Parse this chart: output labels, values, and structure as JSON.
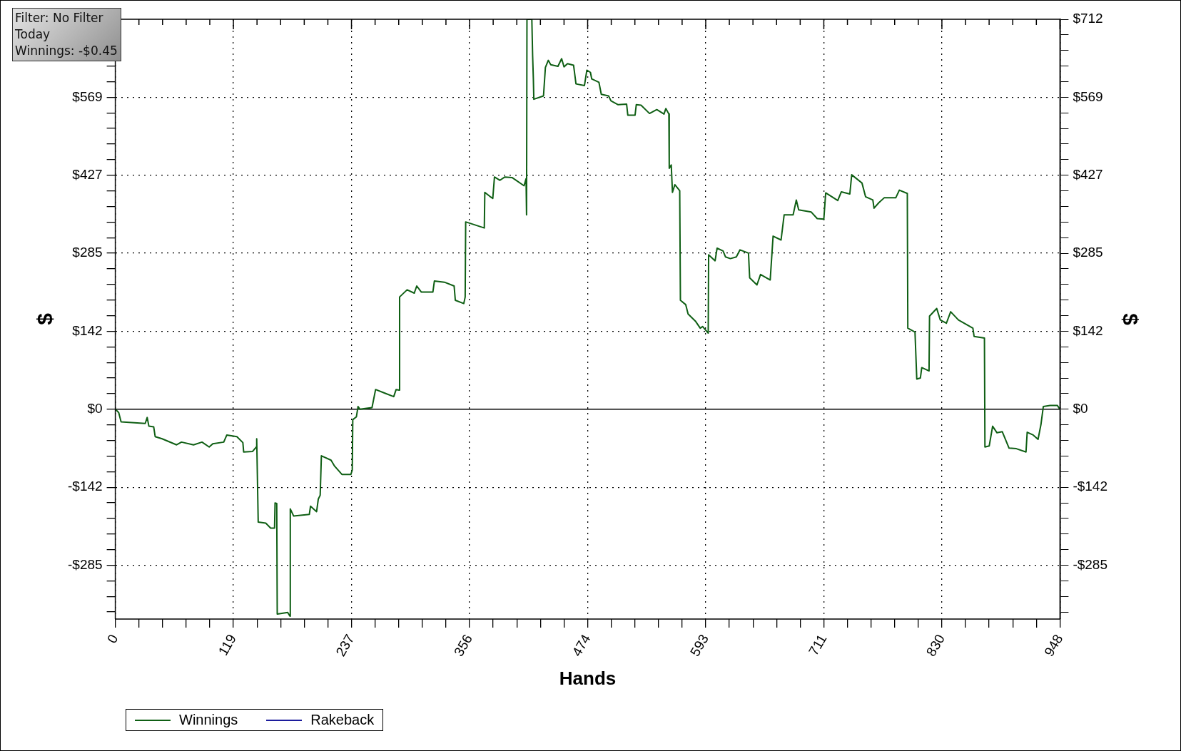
{
  "chart_data": {
    "type": "line",
    "xlabel": "Hands",
    "ylabel": "$",
    "y2label": "$",
    "annotations": [
      "Filter: No Filter",
      "Today",
      "Winnings: -$0.45"
    ],
    "xlim": [
      0,
      948
    ],
    "xticks": [
      {
        "value": 0,
        "label": "0"
      },
      {
        "value": 23.7,
        "label": null
      },
      {
        "value": 47.4,
        "label": null
      },
      {
        "value": 71.1,
        "label": null
      },
      {
        "value": 94.8,
        "label": null
      },
      {
        "value": 118.5,
        "label": "119"
      },
      {
        "value": 142.2,
        "label": null
      },
      {
        "value": 165.9,
        "label": null
      },
      {
        "value": 189.6,
        "label": null
      },
      {
        "value": 213.3,
        "label": null
      },
      {
        "value": 237,
        "label": "237"
      },
      {
        "value": 260.7,
        "label": null
      },
      {
        "value": 284.4,
        "label": null
      },
      {
        "value": 308.1,
        "label": null
      },
      {
        "value": 331.8,
        "label": null
      },
      {
        "value": 355.5,
        "label": "356"
      },
      {
        "value": 379.2,
        "label": null
      },
      {
        "value": 402.9,
        "label": null
      },
      {
        "value": 426.6,
        "label": null
      },
      {
        "value": 450.3,
        "label": null
      },
      {
        "value": 474,
        "label": "474"
      },
      {
        "value": 497.7,
        "label": null
      },
      {
        "value": 521.4,
        "label": null
      },
      {
        "value": 545.1,
        "label": null
      },
      {
        "value": 568.8,
        "label": null
      },
      {
        "value": 592.5,
        "label": "593"
      },
      {
        "value": 616.2,
        "label": null
      },
      {
        "value": 639.9,
        "label": null
      },
      {
        "value": 663.6,
        "label": null
      },
      {
        "value": 687.3,
        "label": null
      },
      {
        "value": 711,
        "label": "711"
      },
      {
        "value": 734.7,
        "label": null
      },
      {
        "value": 758.4,
        "label": null
      },
      {
        "value": 782.1,
        "label": null
      },
      {
        "value": 805.8,
        "label": null
      },
      {
        "value": 829.5,
        "label": "830"
      },
      {
        "value": 853.2,
        "label": null
      },
      {
        "value": 876.9,
        "label": null
      },
      {
        "value": 900.6,
        "label": null
      },
      {
        "value": 924.3,
        "label": null
      },
      {
        "value": 948,
        "label": "948"
      }
    ],
    "ylim": [
      -383,
      712
    ],
    "yticks": [
      {
        "value": -370.24,
        "label": null
      },
      {
        "value": -341.76,
        "label": null
      },
      {
        "value": -313.28,
        "label": null
      },
      {
        "value": -284.8,
        "label": "-$285"
      },
      {
        "value": -256.32,
        "label": null
      },
      {
        "value": -227.84,
        "label": null
      },
      {
        "value": -199.36,
        "label": null
      },
      {
        "value": -170.88,
        "label": null
      },
      {
        "value": -142.4,
        "label": "-$142"
      },
      {
        "value": -113.92,
        "label": null
      },
      {
        "value": -85.44,
        "label": null
      },
      {
        "value": -56.96,
        "label": null
      },
      {
        "value": -28.48,
        "label": null
      },
      {
        "value": 0,
        "label": "$0"
      },
      {
        "value": 28.48,
        "label": null
      },
      {
        "value": 56.96,
        "label": null
      },
      {
        "value": 85.44,
        "label": null
      },
      {
        "value": 113.92,
        "label": null
      },
      {
        "value": 142.4,
        "label": "$142"
      },
      {
        "value": 170.88,
        "label": null
      },
      {
        "value": 199.36,
        "label": null
      },
      {
        "value": 227.84,
        "label": null
      },
      {
        "value": 256.32,
        "label": null
      },
      {
        "value": 284.8,
        "label": "$285"
      },
      {
        "value": 313.28,
        "label": null
      },
      {
        "value": 341.76,
        "label": null
      },
      {
        "value": 370.24,
        "label": null
      },
      {
        "value": 398.72,
        "label": null
      },
      {
        "value": 427.2,
        "label": "$427"
      },
      {
        "value": 455.68,
        "label": null
      },
      {
        "value": 484.16,
        "label": null
      },
      {
        "value": 512.64,
        "label": null
      },
      {
        "value": 541.12,
        "label": null
      },
      {
        "value": 569,
        "label": "$569"
      },
      {
        "value": 598.08,
        "label": null
      },
      {
        "value": 626.56,
        "label": null
      },
      {
        "value": 655.04,
        "label": null
      },
      {
        "value": 683.52,
        "label": null
      },
      {
        "value": 712,
        "label": null
      }
    ],
    "y2lim": [
      -383,
      712
    ],
    "y2ticks": [
      {
        "value": -370.24,
        "label": null
      },
      {
        "value": -341.76,
        "label": null
      },
      {
        "value": -313.28,
        "label": null
      },
      {
        "value": -284.8,
        "label": "-$285"
      },
      {
        "value": -256.32,
        "label": null
      },
      {
        "value": -227.84,
        "label": null
      },
      {
        "value": -199.36,
        "label": null
      },
      {
        "value": -170.88,
        "label": null
      },
      {
        "value": -142.4,
        "label": "-$142"
      },
      {
        "value": -113.92,
        "label": null
      },
      {
        "value": -85.44,
        "label": null
      },
      {
        "value": -56.96,
        "label": null
      },
      {
        "value": -28.48,
        "label": null
      },
      {
        "value": 0,
        "label": "$0"
      },
      {
        "value": 28.48,
        "label": null
      },
      {
        "value": 56.96,
        "label": null
      },
      {
        "value": 85.44,
        "label": null
      },
      {
        "value": 113.92,
        "label": null
      },
      {
        "value": 142.4,
        "label": "$142"
      },
      {
        "value": 170.88,
        "label": null
      },
      {
        "value": 199.36,
        "label": null
      },
      {
        "value": 227.84,
        "label": null
      },
      {
        "value": 256.32,
        "label": null
      },
      {
        "value": 284.8,
        "label": "$285"
      },
      {
        "value": 313.28,
        "label": null
      },
      {
        "value": 341.76,
        "label": null
      },
      {
        "value": 370.24,
        "label": null
      },
      {
        "value": 398.72,
        "label": null
      },
      {
        "value": 427.2,
        "label": "$427"
      },
      {
        "value": 455.68,
        "label": null
      },
      {
        "value": 484.16,
        "label": null
      },
      {
        "value": 512.64,
        "label": null
      },
      {
        "value": 541.12,
        "label": null
      },
      {
        "value": 569,
        "label": "$569"
      },
      {
        "value": 598.08,
        "label": null
      },
      {
        "value": 626.56,
        "label": null
      },
      {
        "value": 655.04,
        "label": null
      },
      {
        "value": 683.52,
        "label": null
      },
      {
        "value": 712,
        "label": "$712"
      }
    ],
    "grid": true,
    "legend": "bottom left",
    "marker": "none",
    "line_style": "solid",
    "ref_lines": [
      {
        "axis": "y",
        "value": 0,
        "color": "#000000"
      }
    ],
    "series": [
      {
        "name": "Winnings",
        "color": "#0f5f14",
        "x": [
          0,
          3.4,
          5.8,
          30,
          32,
          33.7,
          38.5,
          40,
          47,
          61.5,
          66.4,
          78.5,
          87,
          94.2,
          97.8,
          108.8,
          111.9,
          122,
          128,
          128.8,
          137.8,
          141.4,
          141.9,
          143.4,
          151,
          155.9,
          159.8,
          160.3,
          162,
          162.5,
          173,
          175.3,
          175.6,
          179,
          194.7,
          195.9,
          202,
          203.7,
          205.6,
          206.8,
          216.5,
          220.1,
          227.4,
          236.4,
          237.8,
          238.3,
          241.9,
          243.6,
          245.5,
          257.6,
          261.2,
          270.9,
          279.4,
          281.8,
          284.8,
          285.3,
          292.8,
          300,
          302.5,
          307,
          318.7,
          320.2,
          330.3,
          340,
          341.2,
          349.7,
          351.1,
          351.6,
          370.3,
          370.8,
          376.3,
          378.8,
          380.5,
          386,
          390.9,
          398.1,
          410.2,
          412.2,
          412.7,
          413.1,
          418,
          418.8,
          419.5,
          420,
          429.7,
          431.6,
          434.5,
          437,
          444.2,
          447.9,
          450.3,
          453.8,
          459.9,
          462.3,
          470.8,
          473.2,
          476.8,
          478.1,
          485.3,
          487.7,
          495,
          497.4,
          504.6,
          513.1,
          514.3,
          521.6,
          522.8,
          527.6,
          536.1,
          543.4,
          550.6,
          552.5,
          555.5,
          555.9,
          557.9,
          559.1,
          561.5,
          566.4,
          567.1,
          572.4,
          574.8,
          582.1,
          587,
          589.4,
          595,
          595.4,
          601.9,
          603.9,
          609.9,
          612.4,
          617.2,
          623.2,
          626.9,
          635.4,
          636.6,
          643.9,
          647.5,
          657.2,
          660.1,
          668.1,
          671.2,
          680.2,
          683.4,
          685.8,
          698.4,
          704.4,
          711,
          712.9,
          725,
          728.6,
          737.1,
          739,
          749.3,
          752.9,
          760.2,
          761.4,
          766.2,
          771.6,
          783.2,
          786.8,
          794.8,
          795.3,
          802.5,
          804.3,
          807.9,
          809.3,
          816.6,
          817.1,
          824.3,
          827.9,
          834,
          838.3,
          846.1,
          860.6,
          861.8,
          872.2,
          872.7,
          877,
          880.4,
          884.8,
          890.1,
          896.9,
          904.2,
          913.9,
          915.1,
          921.1,
          926,
          928.9,
          931.3,
          938.1,
          945.3,
          948
        ],
        "values": [
          0,
          -6,
          -23,
          -26,
          -15,
          -31,
          -32,
          -50,
          -54,
          -65,
          -60,
          -65,
          -60,
          -69,
          -63,
          -60,
          -47,
          -50,
          -61,
          -78,
          -77,
          -69,
          -54,
          -206,
          -208,
          -217,
          -217,
          -171,
          -172,
          -374,
          -371,
          -378,
          -182,
          -195,
          -192,
          -177,
          -187,
          -164,
          -157,
          -85,
          -93,
          -104,
          -119,
          -119,
          -111,
          -19,
          -14,
          5,
          0,
          3,
          36,
          29,
          23,
          36,
          35,
          205,
          218,
          212,
          225,
          214,
          214,
          234,
          232,
          225,
          199,
          193,
          205,
          342,
          331,
          396,
          388,
          385,
          424,
          418,
          424,
          423,
          408,
          421,
          355,
          712,
          712,
          645,
          605,
          566,
          572,
          624,
          637,
          629,
          626,
          640,
          625,
          631,
          628,
          594,
          591,
          619,
          615,
          603,
          597,
          575,
          572,
          563,
          556,
          557,
          537,
          537,
          556,
          555,
          540,
          547,
          539,
          549,
          539,
          440,
          446,
          396,
          410,
          399,
          199,
          191,
          174,
          161,
          148,
          151,
          139,
          282,
          271,
          294,
          289,
          278,
          275,
          278,
          291,
          285,
          240,
          227,
          246,
          236,
          316,
          309,
          355,
          355,
          382,
          364,
          360,
          348,
          347,
          395,
          381,
          397,
          393,
          428,
          413,
          388,
          382,
          367,
          377,
          386,
          386,
          400,
          394,
          148,
          141,
          55,
          57,
          76,
          70,
          170,
          184,
          163,
          157,
          178,
          163,
          148,
          133,
          130,
          -69,
          -67,
          -31,
          -43,
          -41,
          -71,
          -72,
          -78,
          -42,
          -47,
          -55,
          -28,
          5,
          7,
          7,
          0
        ]
      },
      {
        "name": "Rakeback",
        "color": "#1c1c9c"
      }
    ]
  }
}
